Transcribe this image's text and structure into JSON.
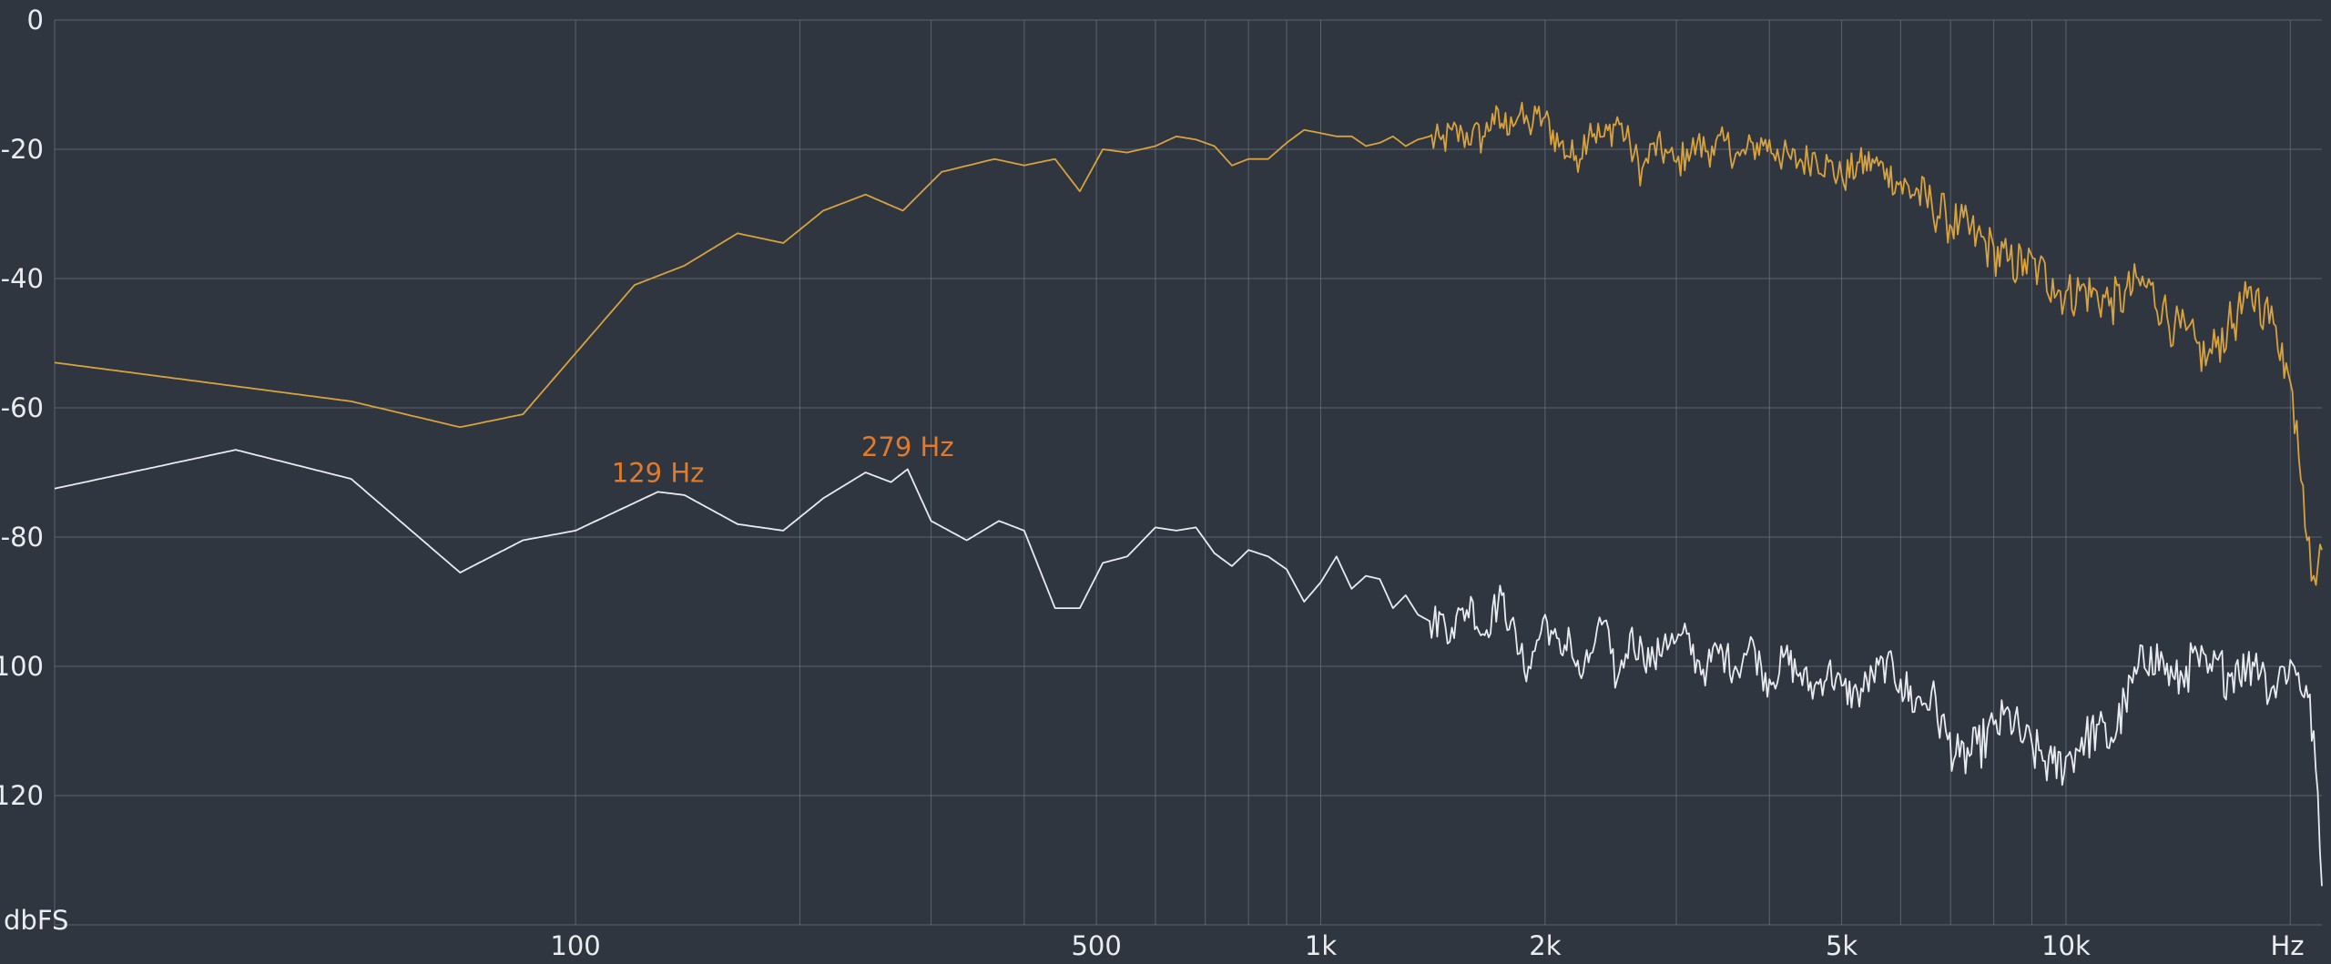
{
  "chart_data": {
    "type": "line",
    "xscale": "log",
    "xlim": [
      20,
      22050
    ],
    "ylim": [
      -140,
      0
    ],
    "grid": true,
    "ylabel": "dbFS",
    "xlabel": "Hz",
    "y_ticks": [
      {
        "value": 0,
        "label": "0"
      },
      {
        "value": -20,
        "label": "-20"
      },
      {
        "value": -40,
        "label": "-40"
      },
      {
        "value": -60,
        "label": "-60"
      },
      {
        "value": -80,
        "label": "-80"
      },
      {
        "value": -100,
        "label": "-100"
      },
      {
        "value": -120,
        "label": "-120"
      }
    ],
    "x_ticks": [
      {
        "value": 100,
        "label": "100"
      },
      {
        "value": 500,
        "label": "500"
      },
      {
        "value": 1000,
        "label": "1k"
      },
      {
        "value": 2000,
        "label": "2k"
      },
      {
        "value": 5000,
        "label": "5k"
      },
      {
        "value": 10000,
        "label": "10k"
      }
    ],
    "x_gridlines": [
      100,
      200,
      300,
      400,
      500,
      600,
      700,
      800,
      900,
      1000,
      2000,
      3000,
      4000,
      5000,
      6000,
      7000,
      8000,
      9000,
      10000,
      20000
    ],
    "annotations": [
      {
        "text": "129 Hz",
        "x": 129,
        "y": -74
      },
      {
        "text": "279 Hz",
        "x": 279,
        "y": -70
      }
    ],
    "series": [
      {
        "color": "#d8a23e",
        "points": [
          [
            20,
            -53
          ],
          [
            50,
            -59
          ],
          [
            70,
            -63
          ],
          [
            85,
            -61
          ],
          [
            120,
            -41
          ],
          [
            140,
            -38
          ],
          [
            165,
            -33
          ],
          [
            190,
            -34.5
          ],
          [
            215,
            -29.5
          ],
          [
            245,
            -27
          ],
          [
            275,
            -29.5
          ],
          [
            310,
            -23.5
          ],
          [
            365,
            -21.5
          ],
          [
            400,
            -22.5
          ],
          [
            440,
            -21.5
          ],
          [
            475,
            -26.5
          ],
          [
            510,
            -20
          ],
          [
            550,
            -20.5
          ],
          [
            600,
            -19.5
          ],
          [
            640,
            -18
          ],
          [
            680,
            -18.5
          ],
          [
            720,
            -19.5
          ],
          [
            760,
            -22.5
          ],
          [
            800,
            -21.5
          ],
          [
            850,
            -21.5
          ],
          [
            900,
            -19
          ],
          [
            950,
            -17
          ],
          [
            1000,
            -17.5
          ],
          [
            1050,
            -18
          ],
          [
            1100,
            -18
          ],
          [
            1150,
            -19.5
          ],
          [
            1200,
            -19
          ],
          [
            1250,
            -18
          ],
          [
            1300,
            -19.5
          ],
          [
            1350,
            -18.5
          ],
          [
            1400,
            -18
          ],
          [
            1450,
            -18.5
          ],
          [
            1500,
            -17
          ],
          [
            1550,
            -17.5
          ],
          [
            1600,
            -17
          ],
          [
            1650,
            -18
          ],
          [
            1700,
            -14.5
          ],
          [
            1750,
            -16
          ],
          [
            1800,
            -15
          ],
          [
            1850,
            -14.5
          ],
          [
            1900,
            -16
          ],
          [
            1950,
            -14.5
          ],
          [
            2000,
            -15
          ],
          [
            2100,
            -19
          ],
          [
            2200,
            -21
          ],
          [
            2300,
            -16
          ],
          [
            2400,
            -18
          ],
          [
            2500,
            -15
          ],
          [
            2600,
            -19
          ],
          [
            2700,
            -23
          ],
          [
            2800,
            -19
          ],
          [
            2900,
            -20
          ],
          [
            3000,
            -22
          ],
          [
            3100,
            -20
          ],
          [
            3200,
            -19
          ],
          [
            3350,
            -19.5
          ],
          [
            3500,
            -18.5
          ],
          [
            3650,
            -21
          ],
          [
            3800,
            -19
          ],
          [
            3950,
            -18.5
          ],
          [
            4100,
            -20
          ],
          [
            4250,
            -21
          ],
          [
            4400,
            -21.5
          ],
          [
            4600,
            -20.5
          ],
          [
            4800,
            -22
          ],
          [
            5000,
            -24
          ],
          [
            5250,
            -22
          ],
          [
            5500,
            -21.5
          ],
          [
            5750,
            -23
          ],
          [
            6000,
            -25
          ],
          [
            6300,
            -26
          ],
          [
            6600,
            -28
          ],
          [
            6900,
            -30
          ],
          [
            7200,
            -31
          ],
          [
            7600,
            -33
          ],
          [
            8000,
            -35
          ],
          [
            8400,
            -37
          ],
          [
            8800,
            -37
          ],
          [
            9200,
            -38
          ],
          [
            9600,
            -40
          ],
          [
            10000,
            -42
          ],
          [
            10500,
            -41
          ],
          [
            11000,
            -42
          ],
          [
            11500,
            -43
          ],
          [
            12000,
            -42
          ],
          [
            12500,
            -40
          ],
          [
            13000,
            -41
          ],
          [
            13500,
            -44
          ],
          [
            14000,
            -47
          ],
          [
            14500,
            -48
          ],
          [
            15000,
            -50
          ],
          [
            15500,
            -52
          ],
          [
            16000,
            -49
          ],
          [
            16500,
            -47
          ],
          [
            17000,
            -45
          ],
          [
            17500,
            -43
          ],
          [
            18000,
            -42
          ],
          [
            18500,
            -44
          ],
          [
            19000,
            -47
          ],
          [
            19500,
            -50
          ],
          [
            20000,
            -56
          ],
          [
            20400,
            -62
          ],
          [
            20800,
            -72
          ],
          [
            21200,
            -80
          ],
          [
            21500,
            -86
          ],
          [
            21800,
            -84
          ],
          [
            22050,
            -82
          ]
        ]
      },
      {
        "color": "#e8ebef",
        "points": [
          [
            20,
            -72.5
          ],
          [
            35,
            -66.5
          ],
          [
            50,
            -71
          ],
          [
            70,
            -85.5
          ],
          [
            85,
            -80.5
          ],
          [
            100,
            -79
          ],
          [
            129,
            -73
          ],
          [
            140,
            -73.5
          ],
          [
            165,
            -78
          ],
          [
            190,
            -79
          ],
          [
            215,
            -74
          ],
          [
            245,
            -70
          ],
          [
            265,
            -71.5
          ],
          [
            279,
            -69.5
          ],
          [
            300,
            -77.5
          ],
          [
            335,
            -80.5
          ],
          [
            370,
            -77.5
          ],
          [
            400,
            -79
          ],
          [
            440,
            -91
          ],
          [
            475,
            -91
          ],
          [
            510,
            -84
          ],
          [
            550,
            -83
          ],
          [
            600,
            -78.5
          ],
          [
            640,
            -79
          ],
          [
            680,
            -78.5
          ],
          [
            720,
            -82.5
          ],
          [
            760,
            -84.5
          ],
          [
            800,
            -82
          ],
          [
            850,
            -83
          ],
          [
            900,
            -85
          ],
          [
            950,
            -90
          ],
          [
            1000,
            -87
          ],
          [
            1050,
            -83
          ],
          [
            1100,
            -88
          ],
          [
            1150,
            -86
          ],
          [
            1200,
            -86.5
          ],
          [
            1250,
            -91
          ],
          [
            1300,
            -89
          ],
          [
            1350,
            -92
          ],
          [
            1400,
            -93
          ],
          [
            1450,
            -92
          ],
          [
            1500,
            -94
          ],
          [
            1550,
            -91
          ],
          [
            1600,
            -90
          ],
          [
            1650,
            -95
          ],
          [
            1700,
            -91
          ],
          [
            1750,
            -89
          ],
          [
            1800,
            -93
          ],
          [
            1850,
            -98
          ],
          [
            1900,
            -100
          ],
          [
            1950,
            -96
          ],
          [
            2000,
            -92
          ],
          [
            2050,
            -95
          ],
          [
            2100,
            -98
          ],
          [
            2150,
            -94
          ],
          [
            2200,
            -100
          ],
          [
            2250,
            -101
          ],
          [
            2300,
            -98
          ],
          [
            2350,
            -94
          ],
          [
            2400,
            -93
          ],
          [
            2450,
            -98
          ],
          [
            2500,
            -102
          ],
          [
            2600,
            -95
          ],
          [
            2700,
            -97
          ],
          [
            2800,
            -99
          ],
          [
            2900,
            -95
          ],
          [
            3000,
            -96
          ],
          [
            3100,
            -95
          ],
          [
            3200,
            -99
          ],
          [
            3300,
            -100
          ],
          [
            3400,
            -97
          ],
          [
            3500,
            -98
          ],
          [
            3600,
            -100
          ],
          [
            3700,
            -98
          ],
          [
            3800,
            -96
          ],
          [
            3900,
            -100
          ],
          [
            4000,
            -102
          ],
          [
            4200,
            -98
          ],
          [
            4400,
            -101
          ],
          [
            4600,
            -103
          ],
          [
            4800,
            -100
          ],
          [
            5000,
            -103
          ],
          [
            5250,
            -104
          ],
          [
            5500,
            -101
          ],
          [
            5750,
            -99
          ],
          [
            6000,
            -102
          ],
          [
            6300,
            -105
          ],
          [
            6600,
            -104
          ],
          [
            6900,
            -110
          ],
          [
            7200,
            -114
          ],
          [
            7600,
            -112
          ],
          [
            8000,
            -109
          ],
          [
            8400,
            -107
          ],
          [
            8800,
            -111
          ],
          [
            9200,
            -113
          ],
          [
            9600,
            -115
          ],
          [
            10000,
            -114
          ],
          [
            10500,
            -111
          ],
          [
            11000,
            -109
          ],
          [
            11500,
            -111
          ],
          [
            12000,
            -105
          ],
          [
            12500,
            -100
          ],
          [
            13000,
            -97
          ],
          [
            13500,
            -99
          ],
          [
            14000,
            -102
          ],
          [
            14500,
            -100
          ],
          [
            15000,
            -98
          ],
          [
            15500,
            -101
          ],
          [
            16000,
            -99
          ],
          [
            16500,
            -101
          ],
          [
            17000,
            -99
          ],
          [
            17500,
            -100
          ],
          [
            18000,
            -98
          ],
          [
            18500,
            -101
          ],
          [
            19000,
            -103
          ],
          [
            19500,
            -100
          ],
          [
            20000,
            -99
          ],
          [
            20500,
            -101
          ],
          [
            21000,
            -103
          ],
          [
            21500,
            -110
          ],
          [
            22050,
            -134
          ]
        ]
      }
    ]
  }
}
